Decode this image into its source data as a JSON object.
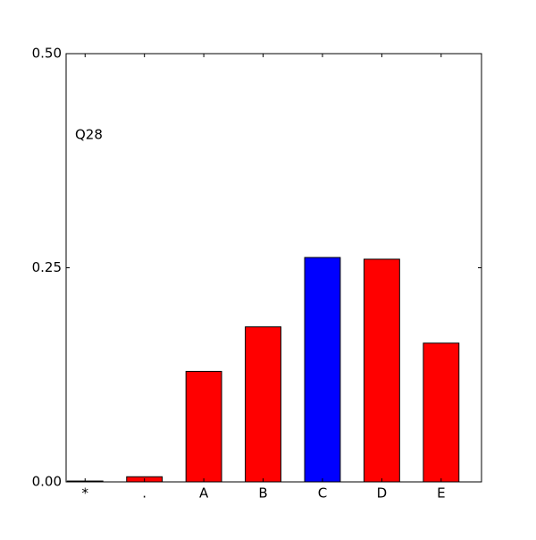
{
  "chart_data": {
    "type": "bar",
    "annotation": "Q28",
    "categories": [
      "*",
      ".",
      "A",
      "B",
      "C",
      "D",
      "E"
    ],
    "values": [
      0.001,
      0.006,
      0.129,
      0.181,
      0.262,
      0.26,
      0.162
    ],
    "colors": [
      "#ff0000",
      "#ff0000",
      "#ff0000",
      "#ff0000",
      "#0000ff",
      "#ff0000",
      "#ff0000"
    ],
    "ylim": [
      0,
      0.5
    ],
    "yticks": [
      {
        "value": 0,
        "label": "0.00"
      },
      0.25,
      {
        "value": 0.5,
        "label": "0.50"
      }
    ],
    "grid": false
  }
}
